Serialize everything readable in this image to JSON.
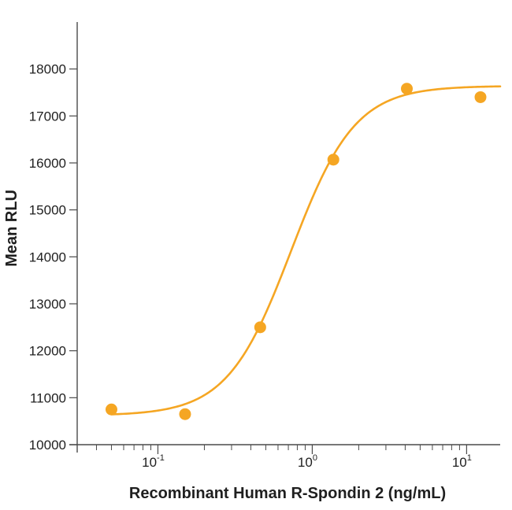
{
  "chart_data": {
    "type": "scatter",
    "title": "",
    "xlabel": "Recombinant Human R-Spondin 2 (ng/mL)",
    "ylabel": "Mean RLU",
    "x_scale": "log",
    "xlim": [
      0.03,
      16.5
    ],
    "ylim": [
      10000,
      19000
    ],
    "x_ticks": [
      {
        "value": 0.1,
        "base": "10",
        "exp": "-1"
      },
      {
        "value": 1,
        "base": "10",
        "exp": "0"
      },
      {
        "value": 10,
        "base": "10",
        "exp": "1"
      }
    ],
    "y_ticks": [
      10000,
      11000,
      12000,
      13000,
      14000,
      15000,
      16000,
      17000,
      18000
    ],
    "grid": false,
    "legend": "none",
    "color": "#f5a623",
    "series": [
      {
        "points": [
          {
            "x": 0.05,
            "y": 10750
          },
          {
            "x": 0.15,
            "y": 10650
          },
          {
            "x": 0.46,
            "y": 12500
          },
          {
            "x": 1.37,
            "y": 16070
          },
          {
            "x": 4.1,
            "y": 17580
          },
          {
            "x": 12.3,
            "y": 17400
          }
        ]
      }
    ],
    "fit_curve": {
      "model": "4PL",
      "bottom": 10620,
      "top": 17640,
      "ec50": 0.73,
      "hill": 2.1
    }
  }
}
